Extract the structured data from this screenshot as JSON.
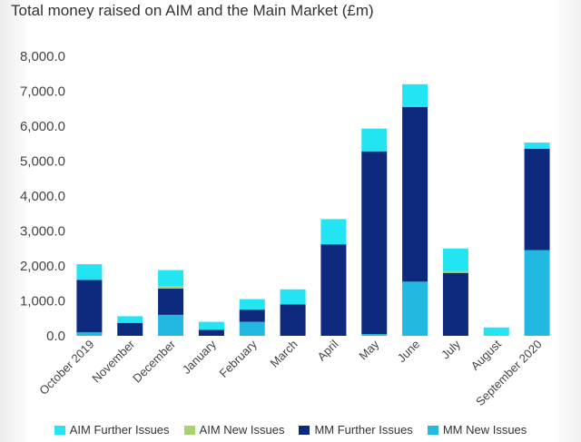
{
  "chart_data": {
    "type": "bar",
    "stacked": true,
    "title": "Total money raised on AIM and the Main Market (£m)",
    "xlabel": "",
    "ylabel": "",
    "ylim": [
      0,
      8000
    ],
    "yticks": [
      "0.0",
      "1,000.0",
      "2,000.0",
      "3,000.0",
      "4,000.0",
      "5,000.0",
      "6,000.0",
      "7,000.0",
      "8,000.0"
    ],
    "grid": false,
    "legend_position": "bottom",
    "categories": [
      "October 2019",
      "November",
      "December",
      "January",
      "February",
      "March",
      "April",
      "May",
      "June",
      "July",
      "August",
      "September 2020"
    ],
    "series": [
      {
        "name": "MM New Issues",
        "color": "#22b8e0",
        "values": [
          100,
          0,
          600,
          0,
          400,
          0,
          0,
          50,
          1550,
          0,
          0,
          2450
        ]
      },
      {
        "name": "MM Further Issues",
        "color": "#0e2a7e",
        "values": [
          1500,
          370,
          750,
          170,
          350,
          900,
          2620,
          5230,
          5000,
          1800,
          0,
          2900
        ]
      },
      {
        "name": "AIM New Issues",
        "color": "#a8d26a",
        "values": [
          0,
          0,
          80,
          0,
          0,
          0,
          0,
          0,
          0,
          50,
          0,
          0
        ]
      },
      {
        "name": "AIM Further Issues",
        "color": "#22e4f2",
        "values": [
          450,
          190,
          450,
          230,
          300,
          430,
          720,
          650,
          650,
          650,
          240,
          180
        ]
      }
    ],
    "legend_order": [
      "AIM Further Issues",
      "AIM New Issues",
      "MM Further Issues",
      "MM New Issues"
    ]
  }
}
